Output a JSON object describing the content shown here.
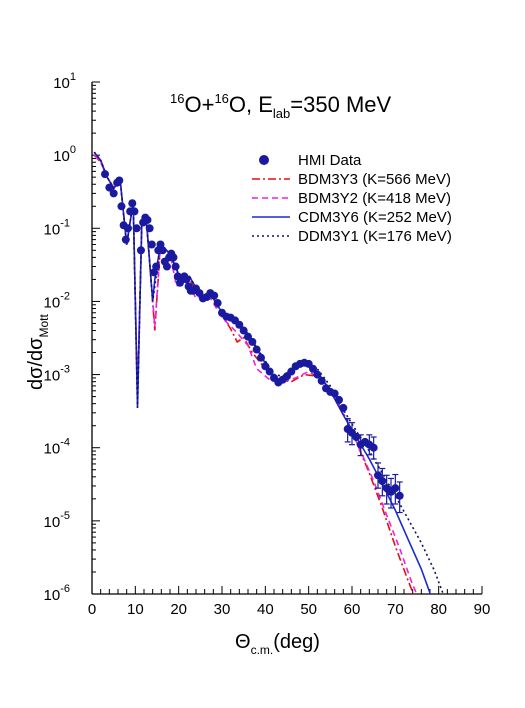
{
  "chart_data": {
    "type": "line",
    "title_parts": {
      "a1": "16",
      "a2": "O+",
      "a3": "16",
      "a4": "O, E",
      "a5": "lab",
      "a6": "=350 MeV"
    },
    "xlabel_parts": {
      "main": "Θ",
      "sub": "c.m.",
      "tail": "(deg)"
    },
    "ylabel_parts": {
      "main": "dσ/dσ",
      "sub": "Mott"
    },
    "xlim": [
      0,
      90
    ],
    "ylim": [
      1e-06,
      10
    ],
    "yscale": "log",
    "x_ticks": [
      "0",
      "10",
      "20",
      "30",
      "40",
      "50",
      "60",
      "70",
      "80",
      "90"
    ],
    "y_ticks": [
      {
        "base": "10",
        "exp": "1"
      },
      {
        "base": "10",
        "exp": "0"
      },
      {
        "base": "10",
        "exp": "-1"
      },
      {
        "base": "10",
        "exp": "-2"
      },
      {
        "base": "10",
        "exp": "-3"
      },
      {
        "base": "10",
        "exp": "-4"
      },
      {
        "base": "10",
        "exp": "-5"
      },
      {
        "base": "10",
        "exp": "-6"
      }
    ],
    "legend_position": "top-right",
    "colors": {
      "data": "#1a1aa0",
      "bdm3y3": "#dd1111",
      "bdm3y2": "#ee22dd",
      "cdm3y6": "#1a2ad0",
      "ddm3y1": "#101060"
    },
    "series": [
      {
        "name": "HMI Data",
        "kind": "points",
        "points": [
          {
            "x": 3.0,
            "y": 0.55
          },
          {
            "x": 4.0,
            "y": 0.36
          },
          {
            "x": 5.0,
            "y": 0.3
          },
          {
            "x": 5.8,
            "y": 0.42
          },
          {
            "x": 6.3,
            "y": 0.45
          },
          {
            "x": 6.8,
            "y": 0.2
          },
          {
            "x": 7.3,
            "y": 0.11
          },
          {
            "x": 7.8,
            "y": 0.07
          },
          {
            "x": 8.3,
            "y": 0.1
          },
          {
            "x": 8.8,
            "y": 0.17
          },
          {
            "x": 9.3,
            "y": 0.22
          },
          {
            "x": 9.8,
            "y": 0.17
          },
          {
            "x": 10.3,
            "y": 0.1
          },
          {
            "x": 11.3,
            "y": 0.05
          },
          {
            "x": 11.8,
            "y": 0.12
          },
          {
            "x": 12.3,
            "y": 0.14
          },
          {
            "x": 12.8,
            "y": 0.13
          },
          {
            "x": 13.3,
            "y": 0.1
          },
          {
            "x": 13.8,
            "y": 0.06
          },
          {
            "x": 14.3,
            "y": 0.025
          },
          {
            "x": 14.8,
            "y": 0.03
          },
          {
            "x": 15.3,
            "y": 0.05
          },
          {
            "x": 15.8,
            "y": 0.06
          },
          {
            "x": 16.3,
            "y": 0.05
          },
          {
            "x": 16.8,
            "y": 0.035
          },
          {
            "x": 17.3,
            "y": 0.03
          },
          {
            "x": 17.8,
            "y": 0.04
          },
          {
            "x": 18.3,
            "y": 0.045
          },
          {
            "x": 18.8,
            "y": 0.04
          },
          {
            "x": 19.3,
            "y": 0.03
          },
          {
            "x": 19.8,
            "y": 0.022
          },
          {
            "x": 20.3,
            "y": 0.018
          },
          {
            "x": 20.8,
            "y": 0.02
          },
          {
            "x": 21.3,
            "y": 0.022
          },
          {
            "x": 21.8,
            "y": 0.02
          },
          {
            "x": 22.3,
            "y": 0.016
          },
          {
            "x": 22.8,
            "y": 0.014
          },
          {
            "x": 23.3,
            "y": 0.014
          },
          {
            "x": 24.0,
            "y": 0.015
          },
          {
            "x": 24.8,
            "y": 0.013
          },
          {
            "x": 25.6,
            "y": 0.011
          },
          {
            "x": 26.5,
            "y": 0.0115
          },
          {
            "x": 27.3,
            "y": 0.013
          },
          {
            "x": 28.2,
            "y": 0.012
          },
          {
            "x": 29.0,
            "y": 0.0095
          },
          {
            "x": 30.0,
            "y": 0.007
          },
          {
            "x": 31.0,
            "y": 0.0062
          },
          {
            "x": 32.0,
            "y": 0.006
          },
          {
            "x": 33.0,
            "y": 0.0055
          },
          {
            "x": 34.0,
            "y": 0.0048
          },
          {
            "x": 35.0,
            "y": 0.004
          },
          {
            "x": 36.0,
            "y": 0.0033
          },
          {
            "x": 37.0,
            "y": 0.0028
          },
          {
            "x": 38.0,
            "y": 0.0022
          },
          {
            "x": 39.0,
            "y": 0.0017
          },
          {
            "x": 40.0,
            "y": 0.0013
          },
          {
            "x": 41.0,
            "y": 0.0011
          },
          {
            "x": 42.0,
            "y": 0.0009
          },
          {
            "x": 43.0,
            "y": 0.00078
          },
          {
            "x": 44.0,
            "y": 0.00085
          },
          {
            "x": 45.0,
            "y": 0.00095
          },
          {
            "x": 46.0,
            "y": 0.0011
          },
          {
            "x": 47.0,
            "y": 0.0013
          },
          {
            "x": 48.0,
            "y": 0.0014
          },
          {
            "x": 49.0,
            "y": 0.00145
          },
          {
            "x": 50.0,
            "y": 0.0014
          },
          {
            "x": 51.0,
            "y": 0.0012
          },
          {
            "x": 52.0,
            "y": 0.001
          },
          {
            "x": 53.0,
            "y": 0.00082
          },
          {
            "x": 54.0,
            "y": 0.00065
          },
          {
            "x": 55.0,
            "y": 0.00058
          },
          {
            "x": 56.0,
            "y": 0.00055
          },
          {
            "x": 57.0,
            "y": 0.00045
          },
          {
            "x": 58.0,
            "y": 0.00035
          },
          {
            "x": 59.0,
            "y": 0.00018
          },
          {
            "x": 60.0,
            "y": 0.00016
          },
          {
            "x": 61.0,
            "y": 0.00014
          },
          {
            "x": 62.0,
            "y": 0.00011
          },
          {
            "x": 63.0,
            "y": 0.00012
          },
          {
            "x": 64.0,
            "y": 0.00011
          },
          {
            "x": 65.0,
            "y": 0.0001
          },
          {
            "x": 66.0,
            "y": 4.2e-05
          },
          {
            "x": 67.0,
            "y": 3.5e-05
          },
          {
            "x": 68.0,
            "y": 2.8e-05
          },
          {
            "x": 69.0,
            "y": 2.5e-05
          },
          {
            "x": 70.0,
            "y": 2.8e-05
          },
          {
            "x": 71.0,
            "y": 2.2e-05
          }
        ],
        "error_bars": [
          {
            "x": 59.0,
            "lo": 0.00012,
            "hi": 0.00025
          },
          {
            "x": 60.0,
            "lo": 0.00011,
            "hi": 0.00022
          },
          {
            "x": 62.0,
            "lo": 7.8e-05,
            "hi": 0.00015
          },
          {
            "x": 64.0,
            "lo": 8e-05,
            "hi": 0.00015
          },
          {
            "x": 65.0,
            "lo": 7e-05,
            "hi": 0.00014
          },
          {
            "x": 66.0,
            "lo": 2.8e-05,
            "hi": 6.2e-05
          },
          {
            "x": 67.0,
            "lo": 2.2e-05,
            "hi": 5.2e-05
          },
          {
            "x": 68.0,
            "lo": 1.7e-05,
            "hi": 4.2e-05
          },
          {
            "x": 69.0,
            "lo": 1.5e-05,
            "hi": 3.8e-05
          },
          {
            "x": 70.0,
            "lo": 1.7e-05,
            "hi": 4.3e-05
          },
          {
            "x": 71.0,
            "lo": 1.3e-05,
            "hi": 3.4e-05
          }
        ]
      },
      {
        "name": "BDM3Y3 (K=566 MeV)",
        "kind": "line",
        "dash": "8 3 2 3",
        "points": [
          {
            "x": 0.5,
            "y": 1.0
          },
          {
            "x": 2.0,
            "y": 0.8
          },
          {
            "x": 3.5,
            "y": 0.5
          },
          {
            "x": 5.0,
            "y": 0.36
          },
          {
            "x": 6.5,
            "y": 0.45
          },
          {
            "x": 8.0,
            "y": 0.06
          },
          {
            "x": 9.5,
            "y": 0.23
          },
          {
            "x": 10.5,
            "y": 0.0005
          },
          {
            "x": 11.5,
            "y": 0.12
          },
          {
            "x": 12.5,
            "y": 0.14
          },
          {
            "x": 14.5,
            "y": 0.004
          },
          {
            "x": 15.8,
            "y": 0.06
          },
          {
            "x": 18.0,
            "y": 0.045
          },
          {
            "x": 20.5,
            "y": 0.019
          },
          {
            "x": 22.5,
            "y": 0.02
          },
          {
            "x": 25.0,
            "y": 0.0115
          },
          {
            "x": 27.5,
            "y": 0.0125
          },
          {
            "x": 30.0,
            "y": 0.0065
          },
          {
            "x": 32.0,
            "y": 0.0042
          },
          {
            "x": 33.5,
            "y": 0.0028
          },
          {
            "x": 35.0,
            "y": 0.0032
          },
          {
            "x": 37.0,
            "y": 0.002
          },
          {
            "x": 40.0,
            "y": 0.0012
          },
          {
            "x": 43.0,
            "y": 0.00085
          },
          {
            "x": 46.0,
            "y": 0.0008
          },
          {
            "x": 49.0,
            "y": 0.001
          },
          {
            "x": 52.0,
            "y": 0.00095
          },
          {
            "x": 55.0,
            "y": 0.00065
          },
          {
            "x": 58.0,
            "y": 0.0003
          },
          {
            "x": 61.0,
            "y": 0.00012
          },
          {
            "x": 64.0,
            "y": 4.5e-05
          },
          {
            "x": 67.0,
            "y": 1.5e-05
          },
          {
            "x": 70.0,
            "y": 4.5e-06
          },
          {
            "x": 73.0,
            "y": 1.5e-06
          },
          {
            "x": 75.0,
            "y": 7.5e-07
          }
        ]
      },
      {
        "name": "BDM3Y2 (K=418 MeV)",
        "kind": "line",
        "dash": "6 4",
        "points": [
          {
            "x": 0.5,
            "y": 1.0
          },
          {
            "x": 2.0,
            "y": 0.8
          },
          {
            "x": 3.5,
            "y": 0.5
          },
          {
            "x": 5.0,
            "y": 0.36
          },
          {
            "x": 6.5,
            "y": 0.45
          },
          {
            "x": 8.0,
            "y": 0.06
          },
          {
            "x": 9.5,
            "y": 0.23
          },
          {
            "x": 10.5,
            "y": 0.0005
          },
          {
            "x": 11.5,
            "y": 0.12
          },
          {
            "x": 12.5,
            "y": 0.14
          },
          {
            "x": 14.5,
            "y": 0.0045
          },
          {
            "x": 15.8,
            "y": 0.06
          },
          {
            "x": 18.0,
            "y": 0.045
          },
          {
            "x": 19.5,
            "y": 0.016
          },
          {
            "x": 21.5,
            "y": 0.022
          },
          {
            "x": 24.0,
            "y": 0.011
          },
          {
            "x": 27.0,
            "y": 0.012
          },
          {
            "x": 30.0,
            "y": 0.006
          },
          {
            "x": 33.0,
            "y": 0.004
          },
          {
            "x": 36.0,
            "y": 0.0025
          },
          {
            "x": 38.0,
            "y": 0.0012
          },
          {
            "x": 41.0,
            "y": 0.00085
          },
          {
            "x": 44.0,
            "y": 0.0008
          },
          {
            "x": 47.0,
            "y": 0.0009
          },
          {
            "x": 50.0,
            "y": 0.0011
          },
          {
            "x": 53.0,
            "y": 0.00085
          },
          {
            "x": 56.0,
            "y": 0.0005
          },
          {
            "x": 59.0,
            "y": 0.00022
          },
          {
            "x": 62.0,
            "y": 9e-05
          },
          {
            "x": 65.0,
            "y": 3.5e-05
          },
          {
            "x": 68.0,
            "y": 1.2e-05
          },
          {
            "x": 71.0,
            "y": 4.2e-06
          },
          {
            "x": 73.5,
            "y": 1.6e-06
          },
          {
            "x": 76.0,
            "y": 7e-07
          }
        ]
      },
      {
        "name": "CDM3Y6 (K=252 MeV)",
        "kind": "line",
        "dash": "",
        "points": [
          {
            "x": 0.5,
            "y": 1.1
          },
          {
            "x": 2.0,
            "y": 0.85
          },
          {
            "x": 3.5,
            "y": 0.5
          },
          {
            "x": 5.0,
            "y": 0.35
          },
          {
            "x": 6.5,
            "y": 0.45
          },
          {
            "x": 8.0,
            "y": 0.06
          },
          {
            "x": 9.5,
            "y": 0.23
          },
          {
            "x": 10.5,
            "y": 0.00035
          },
          {
            "x": 11.5,
            "y": 0.12
          },
          {
            "x": 12.5,
            "y": 0.14
          },
          {
            "x": 14.0,
            "y": 0.01
          },
          {
            "x": 14.5,
            "y": 0.02
          },
          {
            "x": 15.8,
            "y": 0.06
          },
          {
            "x": 18.0,
            "y": 0.045
          },
          {
            "x": 20.5,
            "y": 0.02
          },
          {
            "x": 22.5,
            "y": 0.022
          },
          {
            "x": 25.0,
            "y": 0.012
          },
          {
            "x": 27.5,
            "y": 0.0125
          },
          {
            "x": 30.0,
            "y": 0.007
          },
          {
            "x": 33.0,
            "y": 0.0055
          },
          {
            "x": 36.0,
            "y": 0.0035
          },
          {
            "x": 39.0,
            "y": 0.0018
          },
          {
            "x": 42.0,
            "y": 0.0009
          },
          {
            "x": 44.0,
            "y": 0.00085
          },
          {
            "x": 47.0,
            "y": 0.0012
          },
          {
            "x": 49.0,
            "y": 0.0014
          },
          {
            "x": 52.0,
            "y": 0.0011
          },
          {
            "x": 55.0,
            "y": 0.0006
          },
          {
            "x": 58.0,
            "y": 0.00028
          },
          {
            "x": 61.0,
            "y": 0.00014
          },
          {
            "x": 64.0,
            "y": 7e-05
          },
          {
            "x": 67.0,
            "y": 3.2e-05
          },
          {
            "x": 70.0,
            "y": 1.4e-05
          },
          {
            "x": 73.0,
            "y": 5.5e-06
          },
          {
            "x": 76.0,
            "y": 2.2e-06
          },
          {
            "x": 78.5,
            "y": 8.5e-07
          }
        ]
      },
      {
        "name": "DDM3Y1 (K=176 MeV)",
        "kind": "line",
        "dash": "2 3",
        "points": [
          {
            "x": 0.5,
            "y": 1.1
          },
          {
            "x": 2.0,
            "y": 0.85
          },
          {
            "x": 3.5,
            "y": 0.5
          },
          {
            "x": 5.0,
            "y": 0.35
          },
          {
            "x": 6.5,
            "y": 0.45
          },
          {
            "x": 8.0,
            "y": 0.06
          },
          {
            "x": 9.5,
            "y": 0.23
          },
          {
            "x": 10.5,
            "y": 0.00035
          },
          {
            "x": 11.5,
            "y": 0.12
          },
          {
            "x": 12.5,
            "y": 0.14
          },
          {
            "x": 14.0,
            "y": 0.01
          },
          {
            "x": 15.8,
            "y": 0.06
          },
          {
            "x": 18.0,
            "y": 0.045
          },
          {
            "x": 20.5,
            "y": 0.02
          },
          {
            "x": 22.5,
            "y": 0.022
          },
          {
            "x": 25.0,
            "y": 0.012
          },
          {
            "x": 27.5,
            "y": 0.0125
          },
          {
            "x": 30.0,
            "y": 0.0072
          },
          {
            "x": 33.0,
            "y": 0.0058
          },
          {
            "x": 36.0,
            "y": 0.0036
          },
          {
            "x": 39.0,
            "y": 0.0019
          },
          {
            "x": 42.0,
            "y": 0.001
          },
          {
            "x": 44.0,
            "y": 0.00095
          },
          {
            "x": 47.0,
            "y": 0.0013
          },
          {
            "x": 49.0,
            "y": 0.00145
          },
          {
            "x": 52.0,
            "y": 0.0012
          },
          {
            "x": 55.0,
            "y": 0.0007
          },
          {
            "x": 58.0,
            "y": 0.00033
          },
          {
            "x": 61.0,
            "y": 0.00017
          },
          {
            "x": 64.0,
            "y": 9e-05
          },
          {
            "x": 67.0,
            "y": 4.5e-05
          },
          {
            "x": 70.0,
            "y": 2.2e-05
          },
          {
            "x": 73.0,
            "y": 1.05e-05
          },
          {
            "x": 76.0,
            "y": 5e-06
          },
          {
            "x": 79.0,
            "y": 2.1e-06
          },
          {
            "x": 81.5,
            "y": 8.5e-07
          }
        ]
      }
    ]
  }
}
